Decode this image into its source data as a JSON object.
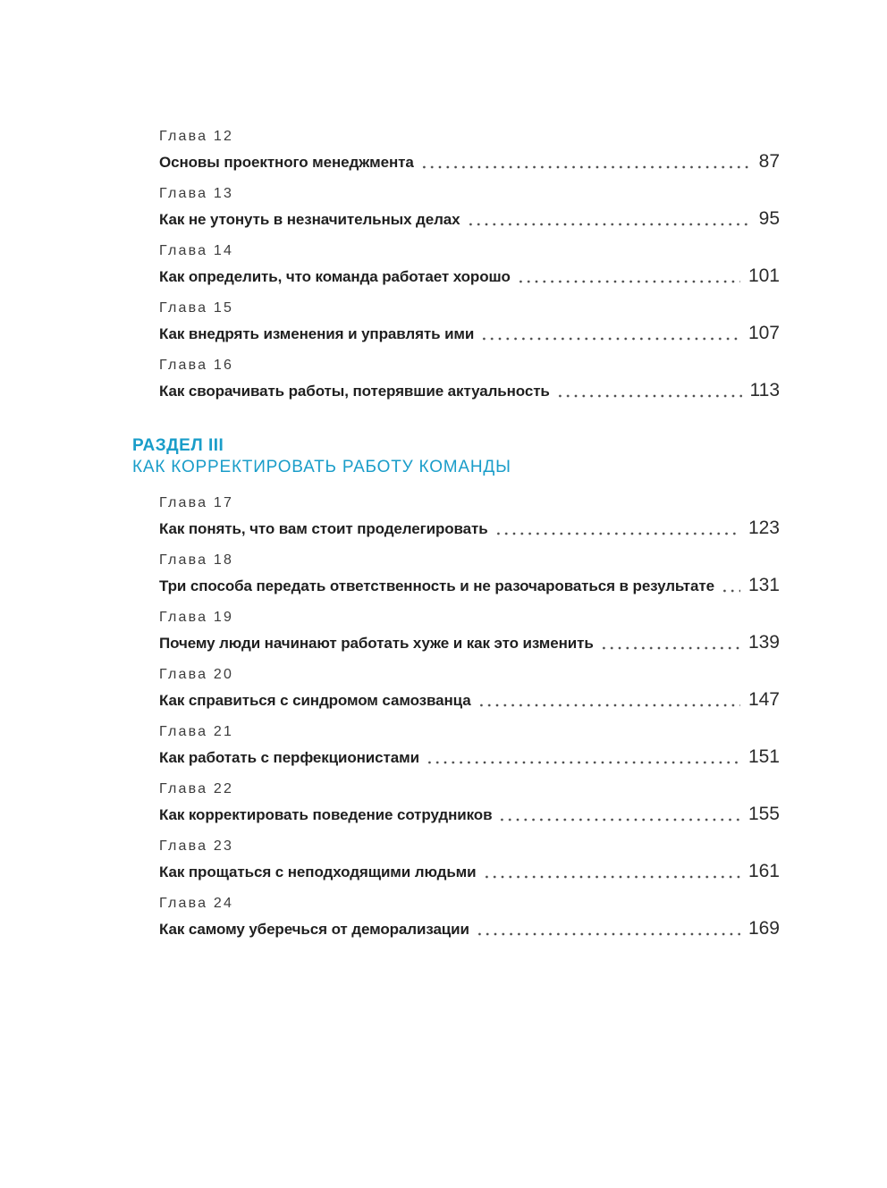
{
  "accent_color": "#1a9dc9",
  "toc": {
    "chapters_part1": [
      {
        "label": "Глава 12",
        "title": "Основы проектного менеджмента",
        "page": "87"
      },
      {
        "label": "Глава 13",
        "title": "Как не утонуть в незначительных делах",
        "page": "95"
      },
      {
        "label": "Глава 14",
        "title": "Как определить, что команда работает хорошо",
        "page": "101"
      },
      {
        "label": "Глава 15",
        "title": "Как внедрять изменения и управлять ими",
        "page": "107"
      },
      {
        "label": "Глава 16",
        "title": "Как сворачивать работы, потерявшие актуальность",
        "page": "113"
      }
    ],
    "section": {
      "kicker": "РАЗДЕЛ III",
      "title": "КАК КОРРЕКТИРОВАТЬ РАБОТУ КОМАНДЫ"
    },
    "chapters_part2": [
      {
        "label": "Глава 17",
        "title": "Как понять, что вам стоит проделегировать",
        "page": "123"
      },
      {
        "label": "Глава 18",
        "title": "Три способа передать ответственность и не разочароваться в результате",
        "page": "131"
      },
      {
        "label": "Глава 19",
        "title": "Почему люди начинают работать хуже и как это изменить",
        "page": "139"
      },
      {
        "label": "Глава 20",
        "title": "Как справиться с синдромом самозванца",
        "page": "147"
      },
      {
        "label": "Глава 21",
        "title": "Как работать с перфекционистами",
        "page": "151"
      },
      {
        "label": "Глава 22",
        "title": "Как корректировать поведение сотрудников",
        "page": "155"
      },
      {
        "label": "Глава 23",
        "title": "Как прощаться с неподходящими людьми",
        "page": "161"
      },
      {
        "label": "Глава 24",
        "title": "Как самому уберечься от деморализации",
        "page": "169"
      }
    ]
  }
}
